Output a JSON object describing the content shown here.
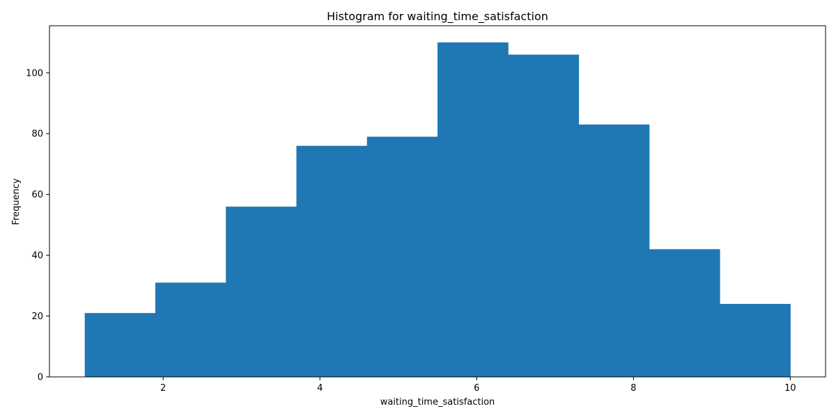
{
  "chart_data": {
    "type": "bar",
    "title": "Histogram for waiting_time_satisfaction",
    "xlabel": "waiting_time_satisfaction",
    "ylabel": "Frequency",
    "bin_edges": [
      1.0,
      1.9,
      2.8,
      3.7,
      4.6,
      5.5,
      6.4,
      7.3,
      8.2,
      9.1,
      10.0
    ],
    "values": [
      21,
      31,
      56,
      76,
      79,
      110,
      106,
      83,
      42,
      24
    ],
    "xlim": [
      0.55,
      10.45
    ],
    "ylim": [
      0,
      115.5
    ],
    "x_ticks": [
      2,
      4,
      6,
      8,
      10
    ],
    "y_ticks": [
      0,
      20,
      40,
      60,
      80,
      100
    ],
    "bar_color": "#1f77b4",
    "grid": false
  }
}
